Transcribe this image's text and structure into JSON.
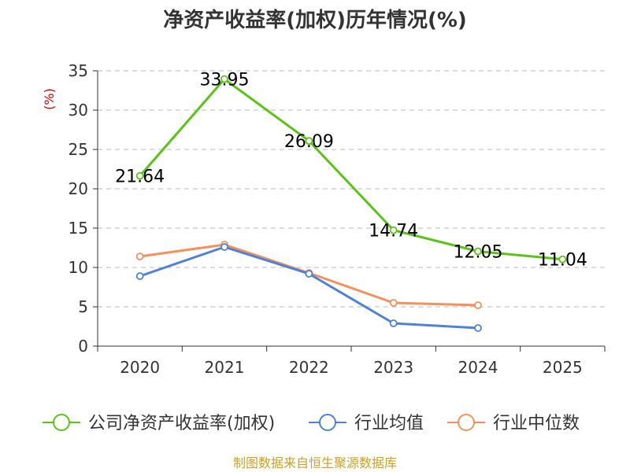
{
  "chart_data": {
    "type": "line",
    "title": "净资产收益率(加权)历年情况(%)",
    "ylabel": "(%)",
    "xlabel": "",
    "ylim": [
      0,
      35
    ],
    "yticks": [
      0,
      5,
      10,
      15,
      20,
      25,
      30,
      35
    ],
    "categories": [
      "2020",
      "2021",
      "2022",
      "2023",
      "2024",
      "2025"
    ],
    "grid": true,
    "legend_position": "bottom",
    "series": [
      {
        "name": "公司净资产收益率(加权)",
        "color": "#5cc21a",
        "values": [
          21.64,
          33.95,
          26.09,
          14.74,
          12.05,
          11.04
        ],
        "labels": [
          "21.64",
          "33.95",
          "26.09",
          "14.74",
          "12.05",
          "11.04"
        ]
      },
      {
        "name": "行业均值",
        "color": "#4f81d6",
        "values": [
          8.9,
          12.6,
          9.2,
          2.9,
          2.3,
          null
        ]
      },
      {
        "name": "行业中位数",
        "color": "#f2915e",
        "values": [
          11.4,
          12.9,
          9.3,
          5.5,
          5.2,
          null
        ]
      }
    ]
  },
  "footer": {
    "source": "制图数据来自恒生聚源数据库",
    "source_color": "#c9a227"
  },
  "ylabel_color": "#cc0000"
}
